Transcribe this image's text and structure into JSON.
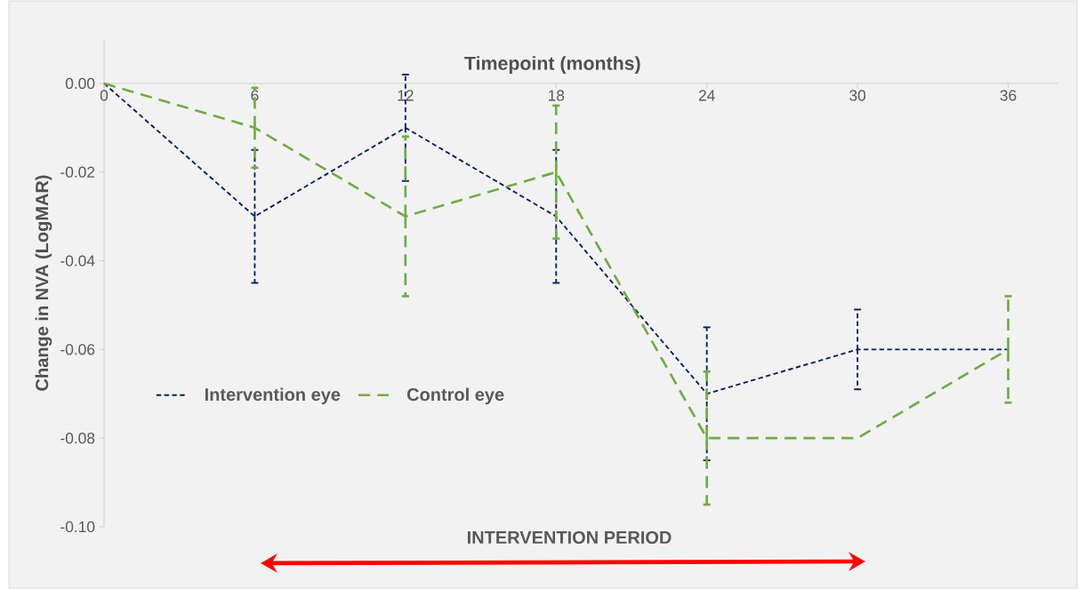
{
  "chart_data": {
    "type": "line",
    "xlabel": "Timepoint (months)",
    "ylabel": "Change in NVA (LogMAR)",
    "x": [
      0,
      6,
      12,
      18,
      24,
      30,
      36
    ],
    "series": [
      {
        "name": "Intervention eye",
        "color": "#002060",
        "values": [
          0,
          -0.03,
          -0.01,
          -0.03,
          -0.07,
          -0.06,
          -0.06
        ],
        "errors": [
          null,
          0.015,
          0.012,
          0.015,
          0.015,
          0.009,
          null
        ]
      },
      {
        "name": "Control eye",
        "color": "#70ad47",
        "values": [
          0,
          -0.01,
          -0.03,
          -0.02,
          -0.08,
          -0.08,
          -0.06
        ],
        "errors": [
          null,
          0.009,
          0.018,
          0.015,
          0.015,
          null,
          0.012
        ]
      }
    ],
    "xlim": [
      0,
      38
    ],
    "xticks": [
      0,
      6,
      12,
      18,
      24,
      30,
      36
    ],
    "ylim": [
      -0.1,
      0.01
    ],
    "yticks": [
      {
        "value": -0.1,
        "label": "-0.10"
      },
      {
        "value": -0.08,
        "label": "-0.08"
      },
      {
        "value": -0.06,
        "label": "-0.06"
      },
      {
        "value": -0.04,
        "label": "-0.04"
      },
      {
        "value": -0.02,
        "label": "-0.02"
      },
      {
        "value": 0,
        "label": "0.00"
      }
    ],
    "annotations": [
      "INTERVENTION PERIOD"
    ],
    "legend": "left",
    "marker": "none",
    "line_style": "dashed"
  }
}
